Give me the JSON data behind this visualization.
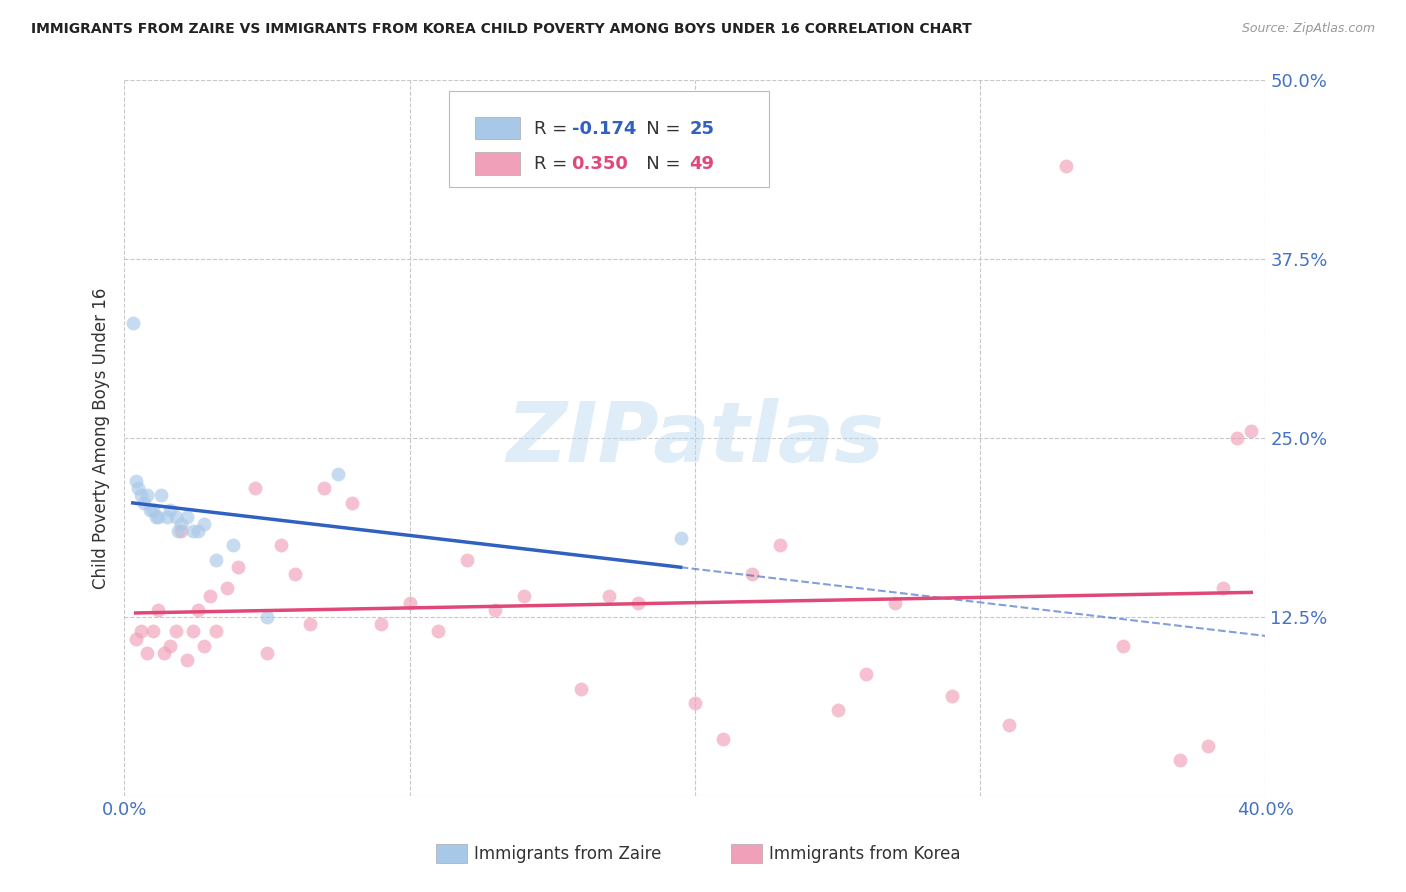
{
  "title": "IMMIGRANTS FROM ZAIRE VS IMMIGRANTS FROM KOREA CHILD POVERTY AMONG BOYS UNDER 16 CORRELATION CHART",
  "source": "Source: ZipAtlas.com",
  "ylabel": "Child Poverty Among Boys Under 16",
  "xlim": [
    0.0,
    0.4
  ],
  "ylim": [
    0.0,
    0.5
  ],
  "xticks": [
    0.0,
    0.1,
    0.2,
    0.3,
    0.4
  ],
  "xticklabels": [
    "0.0%",
    "",
    "",
    "",
    "40.0%"
  ],
  "yticks": [
    0.0,
    0.125,
    0.25,
    0.375,
    0.5
  ],
  "yticklabels": [
    "",
    "12.5%",
    "25.0%",
    "37.5%",
    "50.0%"
  ],
  "background_color": "#ffffff",
  "grid_color": "#c8c8c8",
  "zaire_color": "#a8c8e8",
  "korea_color": "#f0a0b8",
  "zaire_line_color": "#3060c0",
  "korea_line_color": "#e04878",
  "zaire_R": -0.174,
  "zaire_N": 25,
  "korea_R": 0.35,
  "korea_N": 49,
  "watermark_text": "ZIPatlas",
  "zaire_x": [
    0.003,
    0.004,
    0.005,
    0.006,
    0.007,
    0.008,
    0.009,
    0.01,
    0.011,
    0.012,
    0.013,
    0.015,
    0.016,
    0.018,
    0.019,
    0.02,
    0.022,
    0.024,
    0.026,
    0.028,
    0.032,
    0.038,
    0.05,
    0.075,
    0.195
  ],
  "zaire_y": [
    0.33,
    0.22,
    0.215,
    0.21,
    0.205,
    0.21,
    0.2,
    0.2,
    0.195,
    0.195,
    0.21,
    0.195,
    0.2,
    0.195,
    0.185,
    0.19,
    0.195,
    0.185,
    0.185,
    0.19,
    0.165,
    0.175,
    0.125,
    0.225,
    0.18
  ],
  "korea_x": [
    0.004,
    0.006,
    0.008,
    0.01,
    0.012,
    0.014,
    0.016,
    0.018,
    0.02,
    0.022,
    0.024,
    0.026,
    0.028,
    0.03,
    0.032,
    0.036,
    0.04,
    0.046,
    0.05,
    0.055,
    0.06,
    0.065,
    0.07,
    0.08,
    0.09,
    0.1,
    0.11,
    0.12,
    0.13,
    0.14,
    0.16,
    0.17,
    0.18,
    0.2,
    0.21,
    0.22,
    0.23,
    0.25,
    0.26,
    0.27,
    0.29,
    0.31,
    0.33,
    0.35,
    0.37,
    0.38,
    0.385,
    0.39,
    0.395
  ],
  "korea_y": [
    0.11,
    0.115,
    0.1,
    0.115,
    0.13,
    0.1,
    0.105,
    0.115,
    0.185,
    0.095,
    0.115,
    0.13,
    0.105,
    0.14,
    0.115,
    0.145,
    0.16,
    0.215,
    0.1,
    0.175,
    0.155,
    0.12,
    0.215,
    0.205,
    0.12,
    0.135,
    0.115,
    0.165,
    0.13,
    0.14,
    0.075,
    0.14,
    0.135,
    0.065,
    0.04,
    0.155,
    0.175,
    0.06,
    0.085,
    0.135,
    0.07,
    0.05,
    0.44,
    0.105,
    0.025,
    0.035,
    0.145,
    0.25,
    0.255
  ],
  "marker_size": 100,
  "marker_alpha": 0.65
}
